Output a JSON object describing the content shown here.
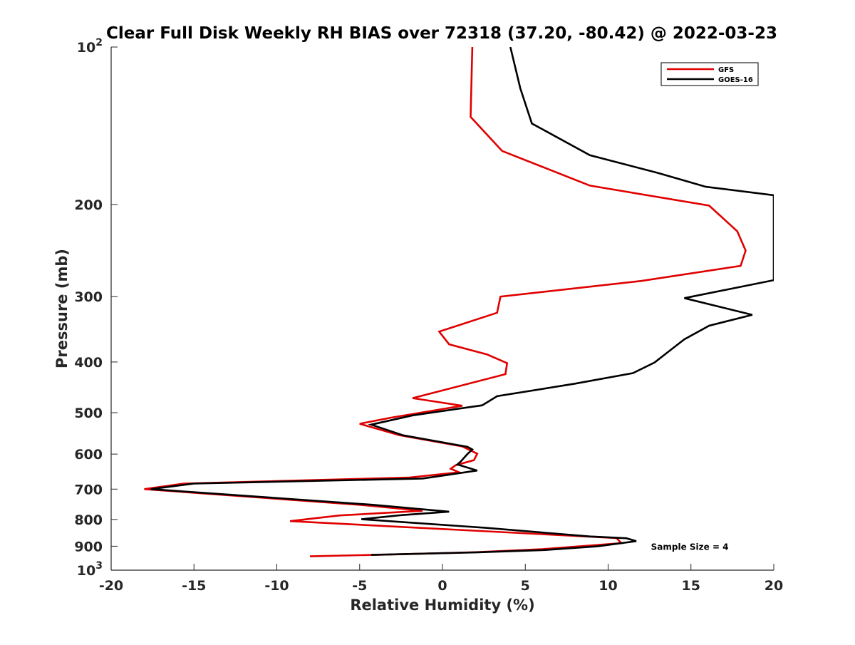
{
  "chart_data": {
    "type": "line",
    "title": "Clear Full Disk Weekly RH BIAS over 72318 (37.20, -80.42) @ 2022-03-23",
    "xlabel": "Relative Humidity (%)",
    "ylabel": "Pressure (mb)",
    "xlim": [
      -20,
      20
    ],
    "ylim": [
      100,
      1000
    ],
    "yscale": "log",
    "y_reversed": true,
    "x_ticks": [
      "-20",
      "-15",
      "-10",
      "-5",
      "0",
      "5",
      "10",
      "15",
      "20"
    ],
    "y_ticks": [
      {
        "value": 100,
        "base": "10",
        "exp": "2"
      },
      {
        "value": 200,
        "base": "200",
        "exp": ""
      },
      {
        "value": 300,
        "base": "300",
        "exp": ""
      },
      {
        "value": 400,
        "base": "400",
        "exp": ""
      },
      {
        "value": 500,
        "base": "500",
        "exp": ""
      },
      {
        "value": 600,
        "base": "600",
        "exp": ""
      },
      {
        "value": 700,
        "base": "700",
        "exp": ""
      },
      {
        "value": 800,
        "base": "800",
        "exp": ""
      },
      {
        "value": 900,
        "base": "900",
        "exp": ""
      },
      {
        "value": 1000,
        "base": "10",
        "exp": "3"
      }
    ],
    "grid": false,
    "legend_position": "top-right",
    "series": [
      {
        "name": "GFS",
        "color": "#e00000",
        "points": [
          [
            1.8,
            100
          ],
          [
            1.7,
            136
          ],
          [
            3.6,
            158
          ],
          [
            8.9,
            184
          ],
          [
            16.1,
            201
          ],
          [
            17.8,
            225
          ],
          [
            18.3,
            245
          ],
          [
            18.0,
            262
          ],
          [
            12.0,
            280
          ],
          [
            3.5,
            300
          ],
          [
            3.3,
            322
          ],
          [
            -0.2,
            350
          ],
          [
            0.4,
            370
          ],
          [
            2.7,
            387
          ],
          [
            3.9,
            402
          ],
          [
            3.8,
            422
          ],
          [
            -1.8,
            469
          ],
          [
            1.2,
            485
          ],
          [
            -3.1,
            511
          ],
          [
            -5.0,
            525
          ],
          [
            -2.6,
            552
          ],
          [
            1.2,
            580
          ],
          [
            2.1,
            599
          ],
          [
            1.9,
            616
          ],
          [
            0.8,
            630
          ],
          [
            0.5,
            640
          ],
          [
            1.0,
            650
          ],
          [
            -2.0,
            665
          ],
          [
            -15.6,
            683
          ],
          [
            -18.0,
            700
          ],
          [
            -5.0,
            750
          ],
          [
            -1.2,
            770
          ],
          [
            -6.2,
            786
          ],
          [
            -9.2,
            806
          ],
          [
            10.5,
            868
          ],
          [
            10.8,
            888
          ],
          [
            6.0,
            912
          ],
          [
            2.0,
            924
          ],
          [
            -3.0,
            933
          ],
          [
            -8.0,
            941
          ]
        ]
      },
      {
        "name": "GOES-16",
        "color": "#000000",
        "points": [
          [
            4.1,
            100
          ],
          [
            4.7,
            120
          ],
          [
            5.4,
            140
          ],
          [
            8.9,
            161
          ],
          [
            13.0,
            174
          ],
          [
            15.9,
            185
          ],
          [
            20.0,
            192
          ],
          [
            20.0,
            279
          ],
          [
            14.6,
            302
          ],
          [
            18.7,
            325
          ],
          [
            16.1,
            341
          ],
          [
            14.6,
            362
          ],
          [
            13.7,
            381
          ],
          [
            12.8,
            401
          ],
          [
            11.5,
            420
          ],
          [
            8.0,
            440
          ],
          [
            3.3,
            465
          ],
          [
            2.4,
            484
          ],
          [
            -1.8,
            506
          ],
          [
            -4.3,
            527
          ],
          [
            -2.4,
            552
          ],
          [
            1.5,
            581
          ],
          [
            1.8,
            588
          ],
          [
            1.5,
            600
          ],
          [
            1.1,
            620
          ],
          [
            0.9,
            628
          ],
          [
            2.1,
            645
          ],
          [
            -1.2,
            668
          ],
          [
            -15.0,
            683
          ],
          [
            -17.6,
            700
          ],
          [
            -4.2,
            750
          ],
          [
            0.4,
            773
          ],
          [
            -2.5,
            785
          ],
          [
            -4.9,
            799
          ],
          [
            2.6,
            830
          ],
          [
            8.9,
            862
          ],
          [
            11.1,
            869
          ],
          [
            11.7,
            880
          ],
          [
            9.4,
            900
          ],
          [
            6.2,
            915
          ],
          [
            2.0,
            925
          ],
          [
            -4.3,
            935
          ]
        ]
      }
    ],
    "annotations": [
      {
        "text": "Sample Size = 4",
        "x": 12.5,
        "y": 900
      }
    ]
  }
}
